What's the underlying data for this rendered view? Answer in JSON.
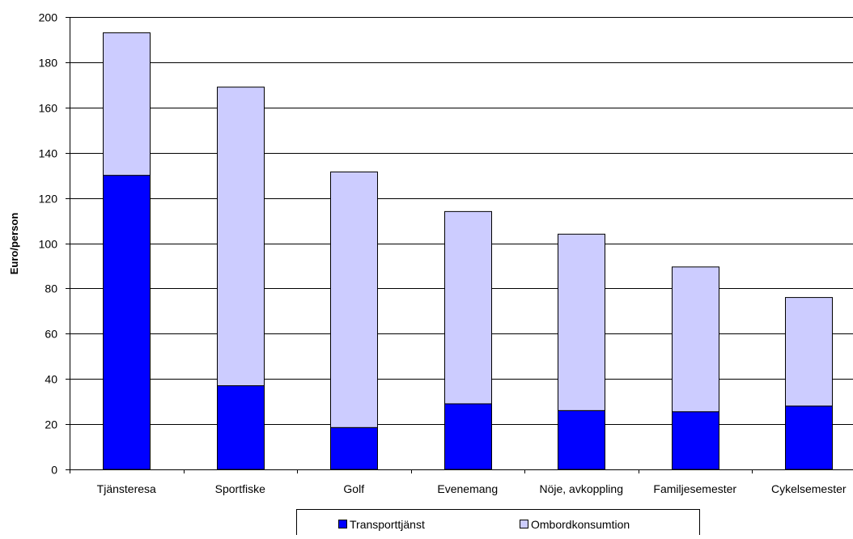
{
  "chart_data": {
    "type": "bar",
    "stacked": true,
    "title": "",
    "xlabel": "",
    "ylabel": "Euro/person",
    "ylim": [
      0,
      200
    ],
    "yticks": [
      0,
      20,
      40,
      60,
      80,
      100,
      120,
      140,
      160,
      180,
      200
    ],
    "grid": true,
    "legend_position": "bottom",
    "categories": [
      "Tjänsteresa",
      "Sportfiske",
      "Golf",
      "Evenemang",
      "Nöje, avkoppling",
      "Familjesemester",
      "Cykelsemester"
    ],
    "series": [
      {
        "name": "Transporttjänst",
        "color": "#0000ff",
        "values": [
          130,
          37,
          18.5,
          29,
          26,
          25.5,
          28
        ]
      },
      {
        "name": "Ombordkonsumtion",
        "color": "#ccccff",
        "values": [
          63,
          132,
          113,
          85,
          78,
          64,
          48
        ]
      }
    ]
  }
}
